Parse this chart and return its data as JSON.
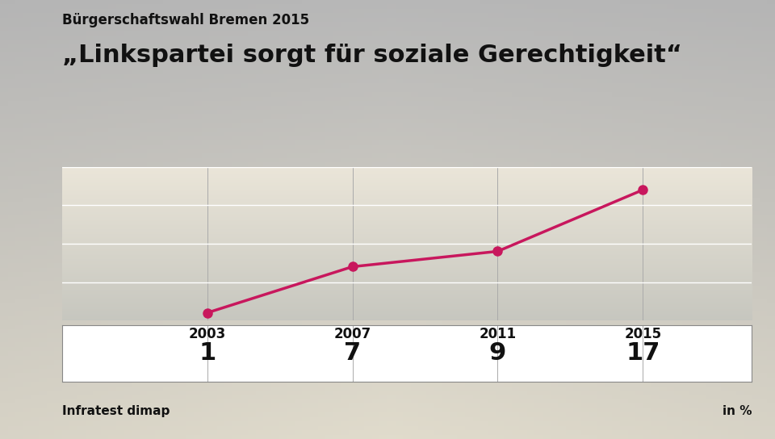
{
  "supertitle": "Bürgerschaftswahl Bremen 2015",
  "title": "„Linkspartei sorgt für soziale Gerechtigkeit“",
  "years": [
    2003,
    2007,
    2011,
    2015
  ],
  "values": [
    1,
    7,
    9,
    17
  ],
  "line_color": "#c8175d",
  "marker_color": "#c8175d",
  "source_left": "Infratest dimap",
  "source_right": "in %",
  "ylim": [
    0,
    20
  ],
  "grid_color": "#ffffff",
  "line_width": 2.5,
  "marker_size": 8,
  "bg_top": "#c8c8c8",
  "bg_bottom": "#d8d5c8",
  "plot_bg_top": "#d0d0d0",
  "plot_bg_bottom": "#e8e5d8",
  "table_bg": "#ffffff",
  "xlim_left": 1999,
  "xlim_right": 2018
}
